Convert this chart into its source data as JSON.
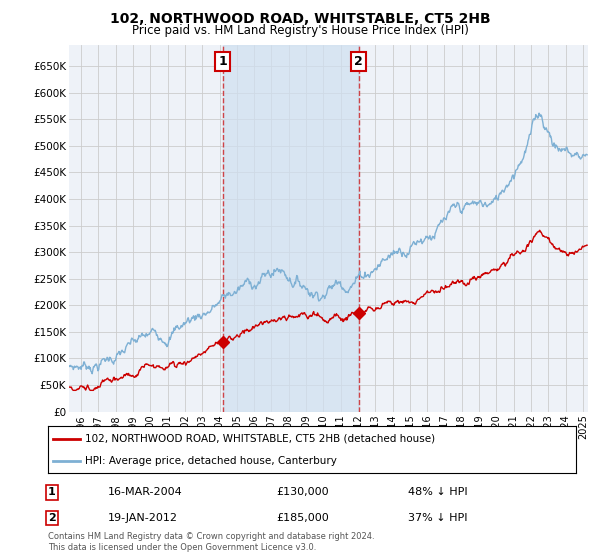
{
  "title": "102, NORTHWOOD ROAD, WHITSTABLE, CT5 2HB",
  "subtitle": "Price paid vs. HM Land Registry's House Price Index (HPI)",
  "ylabel_ticks": [
    "£0",
    "£50K",
    "£100K",
    "£150K",
    "£200K",
    "£250K",
    "£300K",
    "£350K",
    "£400K",
    "£450K",
    "£500K",
    "£550K",
    "£600K",
    "£650K"
  ],
  "ytick_values": [
    0,
    50000,
    100000,
    150000,
    200000,
    250000,
    300000,
    350000,
    400000,
    450000,
    500000,
    550000,
    600000,
    650000
  ],
  "ylim": [
    0,
    690000
  ],
  "xlim_start": 1995.3,
  "xlim_end": 2025.3,
  "hpi_color": "#7eb0d4",
  "price_color": "#cc0000",
  "legend_label_price": "102, NORTHWOOD ROAD, WHITSTABLE, CT5 2HB (detached house)",
  "legend_label_hpi": "HPI: Average price, detached house, Canterbury",
  "transaction1_date": "16-MAR-2004",
  "transaction1_price": 130000,
  "transaction1_pct": "48% ↓ HPI",
  "transaction1_x": 2004.2,
  "transaction2_date": "19-JAN-2012",
  "transaction2_price": 185000,
  "transaction2_pct": "37% ↓ HPI",
  "transaction2_x": 2012.05,
  "footnote": "Contains HM Land Registry data © Crown copyright and database right 2024.\nThis data is licensed under the Open Government Licence v3.0.",
  "background_color": "#ffffff",
  "grid_color": "#cccccc",
  "plot_bg_color": "#eef2f8",
  "shade_color": "#d0e0f0"
}
